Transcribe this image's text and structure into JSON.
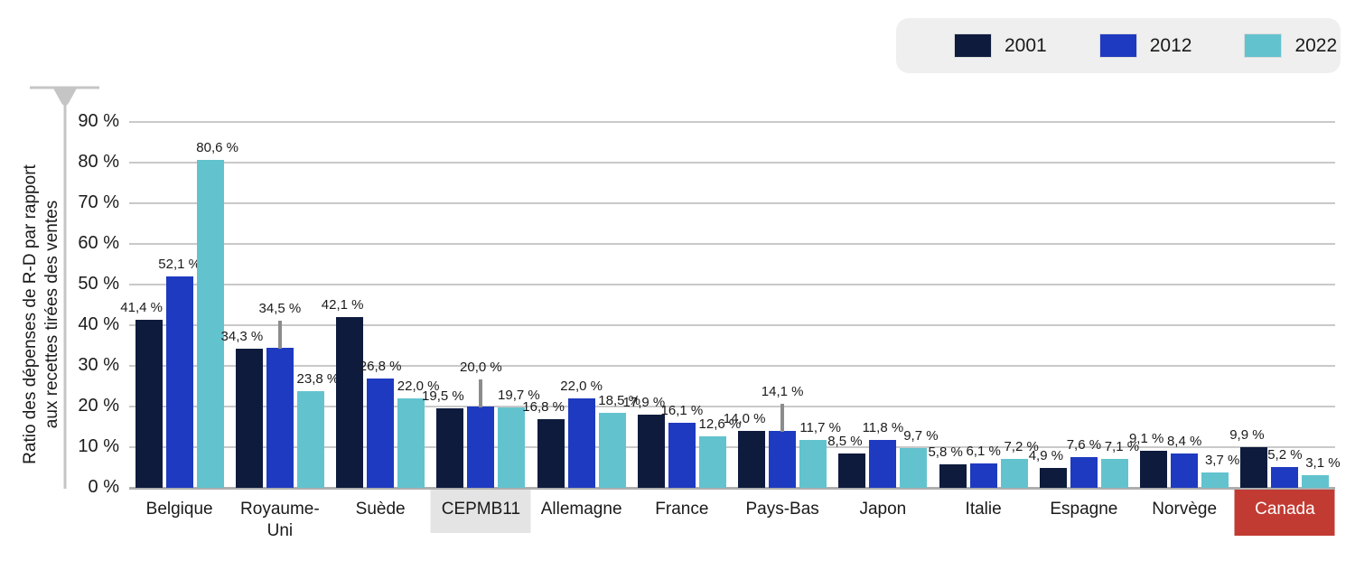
{
  "legend": {
    "background": "#efefef",
    "items": [
      {
        "label": "2001",
        "color": "#0e1b3d"
      },
      {
        "label": "2012",
        "color": "#1e3ac0"
      },
      {
        "label": "2022",
        "color": "#62c3ce"
      }
    ]
  },
  "y_axis": {
    "title": "Ratio des dépenses de R-D par rapport\naux recettes tirées des ventes",
    "tick_labels": [
      "90 %",
      "80 %",
      "70 %",
      "60 %",
      "50 %",
      "40 %",
      "30 %",
      "20 %",
      "10 %",
      "0 %"
    ],
    "tick_values": [
      90,
      80,
      70,
      60,
      50,
      40,
      30,
      20,
      10,
      0
    ]
  },
  "chart_data": {
    "type": "bar",
    "title": "",
    "xlabel": "",
    "ylabel": "Ratio des dépenses de R-D par rapport aux recettes tirées des ventes",
    "ylim": [
      0,
      90
    ],
    "ytick_step": 10,
    "grid": true,
    "legend_position": "top-right",
    "value_label_format": "comma decimal, space before %",
    "categories": [
      "Belgique",
      "Royaume-\nUni",
      "Suède",
      "CEPMB11",
      "Allemagne",
      "France",
      "Pays-Bas",
      "Japon",
      "Italie",
      "Espagne",
      "Norvège",
      "Canada"
    ],
    "series": [
      {
        "name": "2001",
        "color": "#0e1b3d",
        "values": [
          41.4,
          34.3,
          42.1,
          19.5,
          16.8,
          17.9,
          14.0,
          8.5,
          5.8,
          4.9,
          9.1,
          9.9
        ]
      },
      {
        "name": "2012",
        "color": "#1e3ac0",
        "values": [
          52.1,
          34.5,
          26.8,
          20.0,
          22.0,
          16.1,
          14.1,
          11.8,
          6.1,
          7.6,
          8.4,
          5.2
        ]
      },
      {
        "name": "2022",
        "color": "#62c3ce",
        "values": [
          80.6,
          23.8,
          22.0,
          19.7,
          18.5,
          12.6,
          11.7,
          9.7,
          7.2,
          7.1,
          3.7,
          3.1
        ]
      }
    ],
    "annotations": {
      "leader_line_labels": [
        {
          "category_index": 1,
          "series_index": 1,
          "label": "34,5 %"
        },
        {
          "category_index": 3,
          "series_index": 1,
          "label": "20,0 %"
        },
        {
          "category_index": 6,
          "series_index": 1,
          "label": "14,1 %"
        }
      ],
      "highlighted_categories": [
        {
          "category_index": 3,
          "label": "CEPMB11",
          "style": "gray",
          "box_color": "#e4e4e4",
          "text_color": "#1a1a1a"
        },
        {
          "category_index": 11,
          "label": "Canada",
          "style": "red",
          "box_color": "#c23b33",
          "text_color": "#ffffff"
        }
      ]
    }
  },
  "colors": {
    "gridline": "#c9c9c9",
    "baseline": "#aeaeae",
    "axis": "#c5c5c5",
    "leader_line": "#8c8c8c",
    "text": "#1a1a1a"
  }
}
